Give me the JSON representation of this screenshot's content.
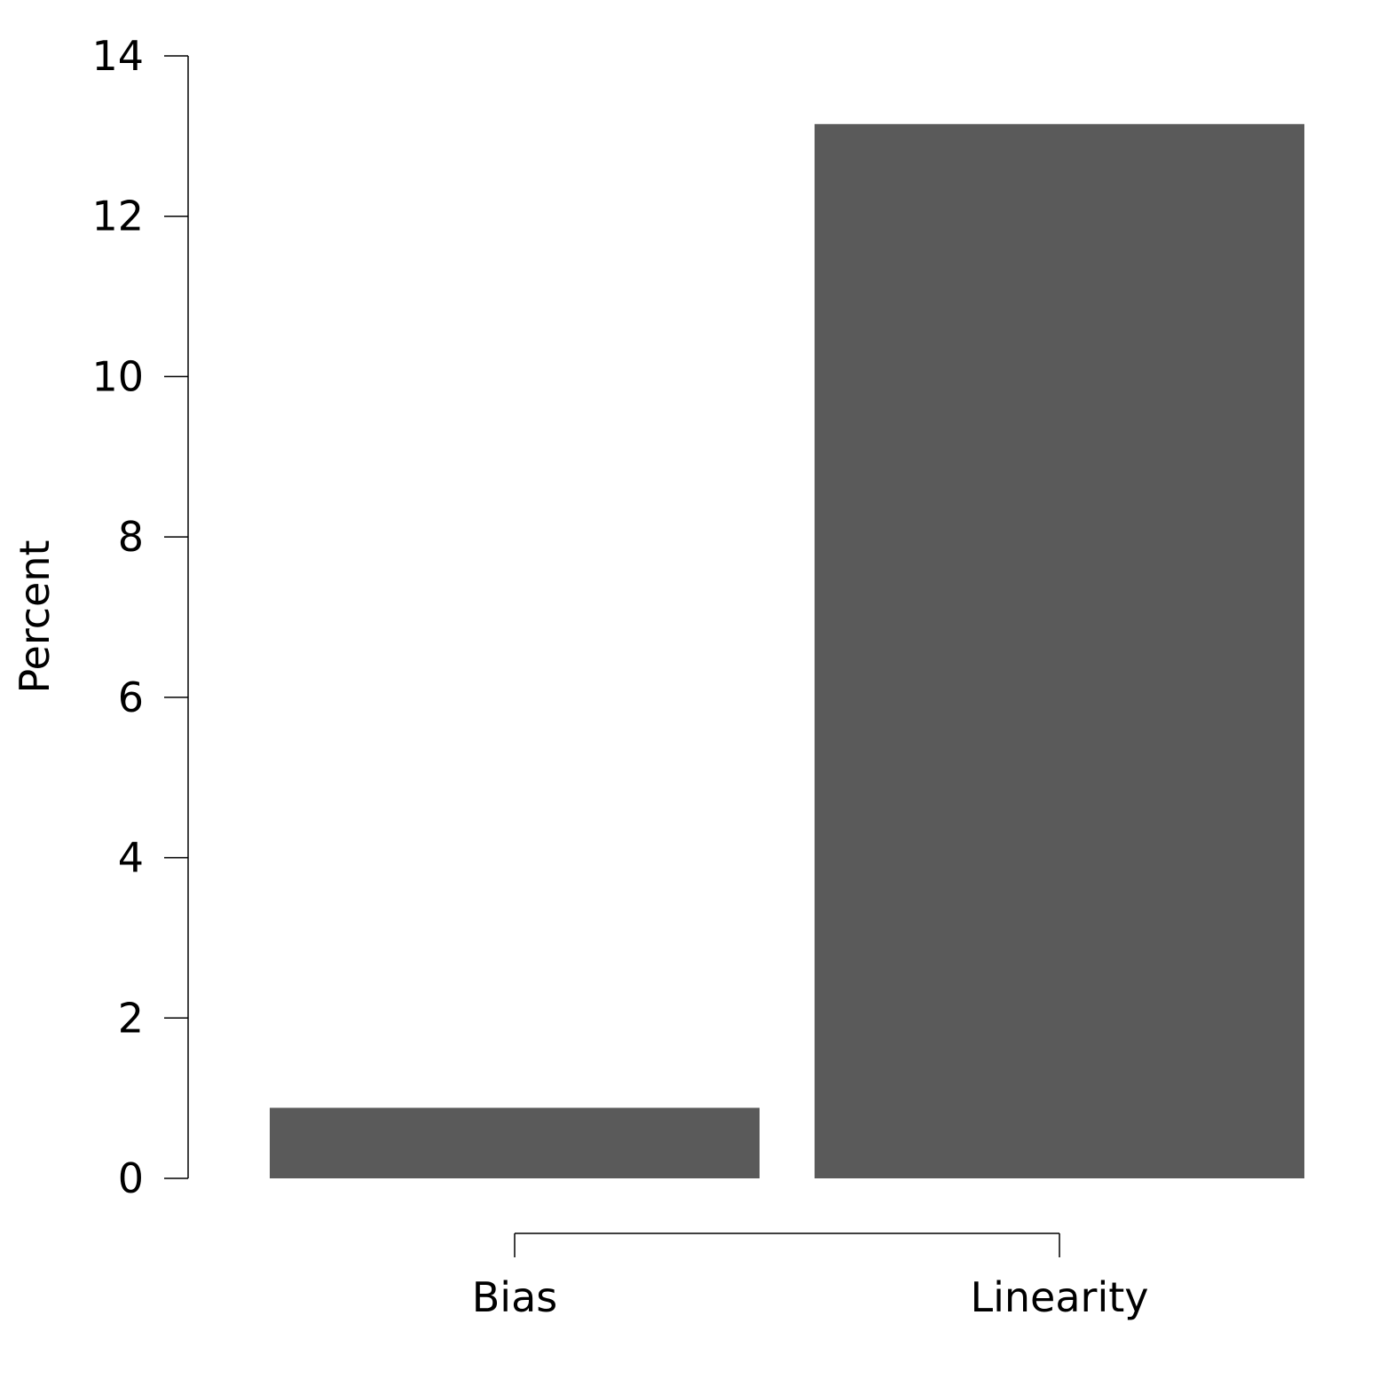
{
  "chart_data": {
    "type": "bar",
    "categories": [
      "Bias",
      "Linearity"
    ],
    "values": [
      0.88,
      13.15
    ],
    "ylabel": "Percent",
    "xlabel": "",
    "ylim": [
      0,
      14
    ],
    "yticks": [
      0,
      2,
      4,
      6,
      8,
      10,
      12,
      14
    ],
    "bar_color": "#5a5a5a",
    "grid": false,
    "legend": "none"
  }
}
